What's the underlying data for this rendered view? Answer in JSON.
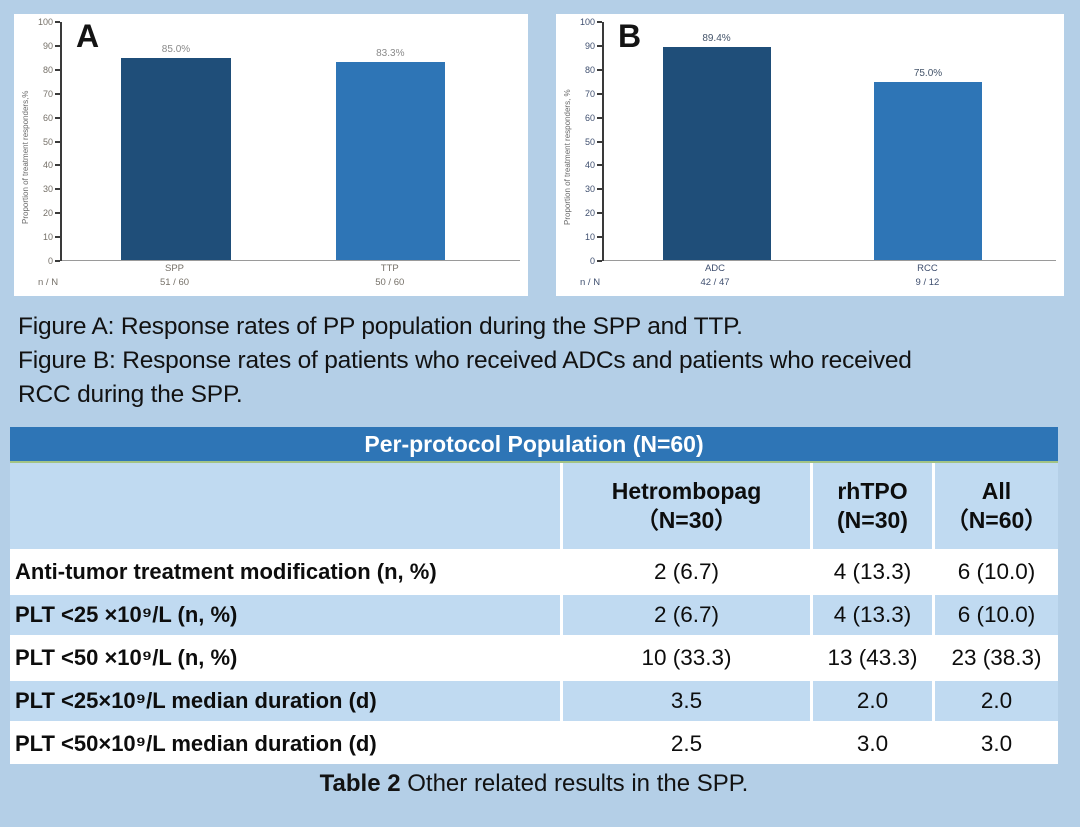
{
  "accent_colors": {
    "page_background": "#b4cfe7",
    "dark_bar": "#1f4e79",
    "light_bar": "#2e75b6",
    "table_banner": "#2e75b6",
    "table_row_blue": "#c0daf1",
    "banner_underline_green": "#a2c385"
  },
  "chart_data": [
    {
      "type": "bar",
      "panel_label": "A",
      "ylabel": "Proportion of treatment responders,%",
      "ylim": [
        0,
        100
      ],
      "ytick_step": 10,
      "categories": [
        "SPP",
        "TTP"
      ],
      "values": [
        85.0,
        83.3
      ],
      "bar_labels": [
        "85.0%",
        "83.3%"
      ],
      "bar_colors": [
        "#1f4e79",
        "#2e75b6"
      ],
      "n_over_N_label": "n / N",
      "n_over_N": [
        "51 / 60",
        "50 / 60"
      ],
      "tick_text_color": "#757068",
      "value_label_color": "#8a8a8a",
      "legend": "none",
      "grid": "off"
    },
    {
      "type": "bar",
      "panel_label": "B",
      "ylabel": "Proportion of treatment responders, %",
      "ylim": [
        0,
        100
      ],
      "ytick_step": 10,
      "categories": [
        "ADC",
        "RCC"
      ],
      "values": [
        89.4,
        75.0
      ],
      "bar_labels": [
        "89.4%",
        "75.0%"
      ],
      "bar_colors": [
        "#1f4e79",
        "#2e75b6"
      ],
      "n_over_N_label": "n / N",
      "n_over_N": [
        "42 / 47",
        "9 / 12"
      ],
      "tick_text_color": "#3f4f6f",
      "value_label_color": "#44546a",
      "legend": "none",
      "grid": "off"
    },
    {
      "type": "table",
      "title": "Per-protocol Population (N=60)",
      "columns": [
        "",
        "Hetrombopag（N=30）",
        "rhTPO (N=30)",
        "All（N=60）"
      ],
      "rows": [
        [
          "Anti-tumor treatment modification (n, %)",
          "2 (6.7)",
          "4 (13.3)",
          "6 (10.0)"
        ],
        [
          "PLT <25 ×10⁹/L (n, %)",
          "2 (6.7)",
          "4 (13.3)",
          "6 (10.0)"
        ],
        [
          "PLT <50 ×10⁹/L (n, %)",
          "10 (33.3)",
          "13 (43.3)",
          "23 (38.3)"
        ],
        [
          "PLT <25×10⁹/L median duration (d)",
          "3.5",
          "2.0",
          "2.0"
        ],
        [
          "PLT <50×10⁹/L median duration (d)",
          "2.5",
          "3.0",
          "3.0"
        ]
      ]
    }
  ],
  "captions": {
    "figure_a": "Figure A: Response rates of PP population during the SPP and TTP.",
    "figure_b": "Figure B: Response rates of patients who received ADCs and patients who received RCC during the SPP."
  },
  "table": {
    "title": "Per-protocol Population (N=60)",
    "headers": [
      "Hetrombopag\n（N=30）",
      "rhTPO\n(N=30)",
      "All\n（N=60）"
    ],
    "rows": [
      {
        "label": "Anti-tumor treatment modification (n, %)",
        "values": [
          "2 (6.7)",
          "4 (13.3)",
          "6 (10.0)"
        ]
      },
      {
        "label": "PLT <25 ×10⁹/L (n, %)",
        "values": [
          "2 (6.7)",
          "4 (13.3)",
          "6 (10.0)"
        ]
      },
      {
        "label": "PLT <50 ×10⁹/L (n, %)",
        "values": [
          "10 (33.3)",
          "13 (43.3)",
          "23 (38.3)"
        ]
      },
      {
        "label": "PLT <25×10⁹/L median duration (d)",
        "values": [
          "3.5",
          "2.0",
          "2.0"
        ]
      },
      {
        "label": "PLT <50×10⁹/L median duration (d)",
        "values": [
          "2.5",
          "3.0",
          "3.0"
        ]
      }
    ],
    "caption_bold": "Table 2",
    "caption_rest": " Other related results in the SPP."
  }
}
